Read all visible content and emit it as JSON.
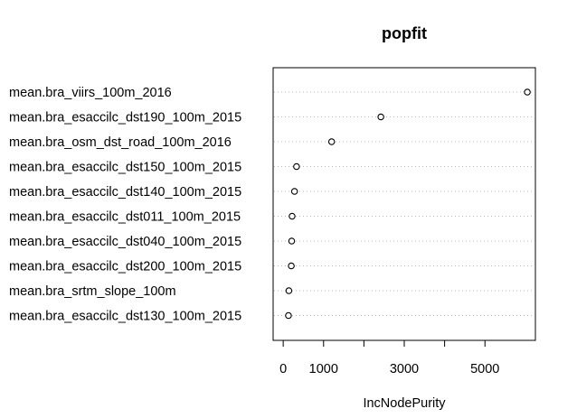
{
  "chart_data": {
    "type": "scatter",
    "title": "popfit",
    "xlabel": "IncNodePurity",
    "ylabel": "",
    "xlim": [
      -250,
      6250
    ],
    "x_ticks": [
      0,
      1000,
      3000,
      5000
    ],
    "x_tick_marks": [
      0,
      1000,
      2000,
      3000,
      4000,
      5000
    ],
    "grid": "dotted horizontal per row",
    "categories": [
      "mean.bra_viirs_100m_2016",
      "mean.bra_esaccilc_dst190_100m_2015",
      "mean.bra_osm_dst_road_100m_2016",
      "mean.bra_esaccilc_dst150_100m_2015",
      "mean.bra_esaccilc_dst140_100m_2015",
      "mean.bra_esaccilc_dst011_100m_2015",
      "mean.bra_esaccilc_dst040_100m_2015",
      "mean.bra_esaccilc_dst200_100m_2015",
      "mean.bra_srtm_slope_100m",
      "mean.bra_esaccilc_dst130_100m_2015"
    ],
    "values": [
      6050,
      2420,
      1200,
      330,
      280,
      220,
      210,
      200,
      140,
      130
    ]
  }
}
